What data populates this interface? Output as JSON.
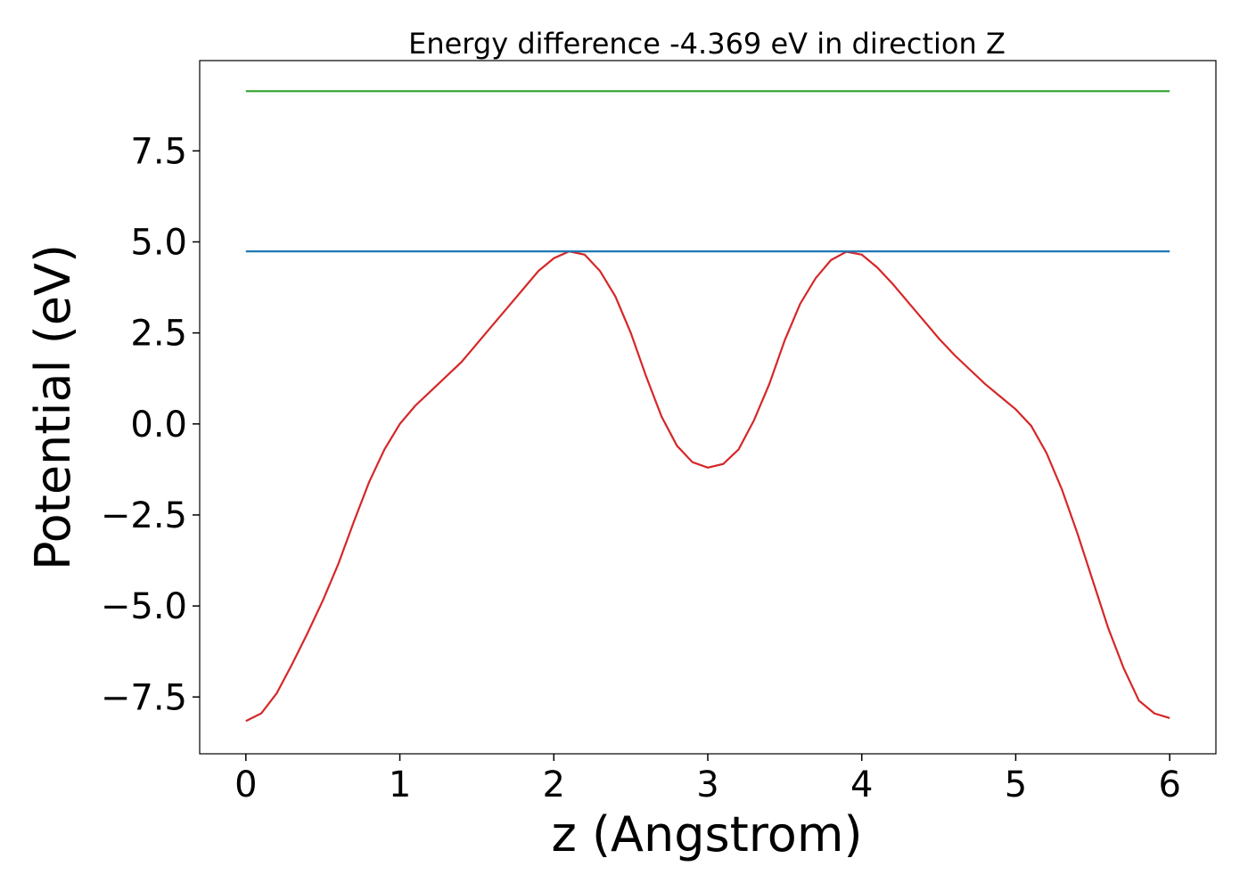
{
  "chart_data": {
    "type": "line",
    "title": "Energy difference -4.369 eV in direction Z",
    "xlabel": "z (Angstrom)",
    "ylabel": "Potential (eV)",
    "xlim": [
      -0.3,
      6.3
    ],
    "ylim": [
      -9.06,
      9.98
    ],
    "xticks": [
      0,
      1,
      2,
      3,
      4,
      5,
      6
    ],
    "yticks": [
      {
        "value": -7.5,
        "label": "−7.5"
      },
      {
        "value": -5,
        "label": "−5.0"
      },
      {
        "value": -2.5,
        "label": "−2.5"
      },
      {
        "value": 0,
        "label": "0.0"
      },
      2.5,
      {
        "value": 5,
        "label": "5.0"
      },
      7.5
    ],
    "grid": false,
    "series": [
      {
        "color": "#d62728",
        "x": [
          0,
          0.1,
          0.2,
          0.3,
          0.4,
          0.5,
          0.6,
          0.7,
          0.8,
          0.9,
          1.0,
          1.1,
          1.2,
          1.3,
          1.4,
          1.5,
          1.6,
          1.7,
          1.8,
          1.9,
          2.0,
          2.1,
          2.2,
          2.3,
          2.4,
          2.5,
          2.6,
          2.7,
          2.8,
          2.9,
          3.0,
          3.1,
          3.2,
          3.3,
          3.4,
          3.5,
          3.6,
          3.7,
          3.8,
          3.9,
          4.0,
          4.1,
          4.2,
          4.3,
          4.4,
          4.5,
          4.6,
          4.7,
          4.8,
          4.9,
          5.0,
          5.1,
          5.2,
          5.3,
          5.4,
          5.5,
          5.6,
          5.7,
          5.8,
          5.9,
          6.0
        ],
        "values": [
          -8.16,
          -7.95,
          -7.4,
          -6.6,
          -5.75,
          -4.85,
          -3.85,
          -2.7,
          -1.6,
          -0.7,
          0.0,
          0.5,
          0.9,
          1.3,
          1.7,
          2.2,
          2.7,
          3.2,
          3.7,
          4.2,
          4.55,
          4.74,
          4.65,
          4.2,
          3.5,
          2.5,
          1.3,
          0.2,
          -0.6,
          -1.05,
          -1.2,
          -1.1,
          -0.7,
          0.1,
          1.1,
          2.3,
          3.3,
          4.0,
          4.5,
          4.73,
          4.65,
          4.3,
          3.85,
          3.35,
          2.85,
          2.35,
          1.9,
          1.5,
          1.1,
          0.75,
          0.4,
          -0.05,
          -0.8,
          -1.8,
          -3.0,
          -4.3,
          -5.6,
          -6.7,
          -7.6,
          -7.95,
          -8.08
        ]
      },
      {
        "color": "#1f77b4",
        "x": [
          0,
          6
        ],
        "values": [
          4.74,
          4.74
        ]
      },
      {
        "color": "#2ca02c",
        "x": [
          0,
          6
        ],
        "values": [
          9.14,
          9.14
        ]
      }
    ]
  }
}
